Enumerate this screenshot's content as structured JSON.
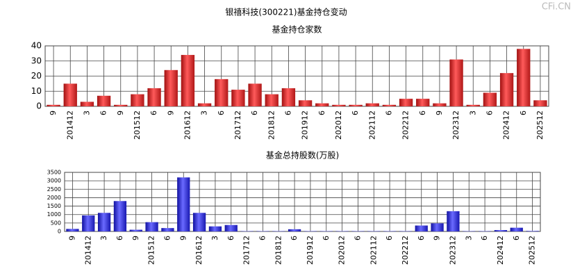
{
  "title": "银禧科技(300221)基金持仓变动",
  "watermark": "CFi.CN",
  "chart_data": [
    {
      "type": "bar",
      "title": "基金持仓家数",
      "categories": [
        "9",
        "201412",
        "3",
        "6",
        "9",
        "201512",
        "6",
        "9",
        "201612",
        "3",
        "6",
        "201712",
        "6",
        "201812",
        "6",
        "201912",
        "6",
        "202012",
        "6",
        "202112",
        "6",
        "202212",
        "6",
        "9",
        "202312",
        "3",
        "6",
        "202412",
        "6",
        "202512"
      ],
      "values": [
        1,
        15,
        3,
        7,
        1,
        8,
        12,
        24,
        34,
        2,
        18,
        11,
        15,
        8,
        12,
        4,
        2,
        1,
        1,
        2,
        1,
        5,
        5,
        2,
        31,
        1,
        9,
        22,
        38,
        4
      ],
      "color": "#e02828",
      "ylim": [
        0,
        40
      ],
      "yticks": [
        0,
        10,
        20,
        30,
        40
      ],
      "grid": true
    },
    {
      "type": "bar",
      "title": "基金总持股数(万股)",
      "categories": [
        "9",
        "201412",
        "3",
        "6",
        "9",
        "201512",
        "6",
        "9",
        "201612",
        "3",
        "6",
        "201712",
        "6",
        "201812",
        "6",
        "201912",
        "6",
        "202012",
        "6",
        "202112",
        "6",
        "202212",
        "6",
        "9",
        "202312",
        "3",
        "6",
        "202412",
        "6",
        "202512"
      ],
      "values": [
        150,
        950,
        1100,
        1800,
        100,
        550,
        200,
        3200,
        1100,
        300,
        380,
        20,
        20,
        20,
        130,
        20,
        20,
        20,
        20,
        20,
        20,
        20,
        350,
        480,
        1200,
        20,
        20,
        80,
        220,
        30
      ],
      "color": "#2828d8",
      "ylim": [
        0,
        3500
      ],
      "yticks": [
        0,
        500,
        1000,
        1500,
        2000,
        2500,
        3000,
        3500
      ],
      "grid": true
    }
  ]
}
